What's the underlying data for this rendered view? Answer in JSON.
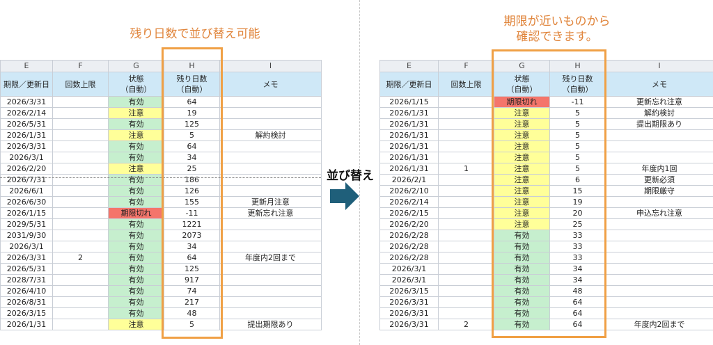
{
  "annotations": {
    "left": "残り日数で並び替え可能",
    "right_line1": "期限が近いものから",
    "right_line2": "確認できます。",
    "arrow": "並び替え"
  },
  "colors": {
    "valid": "#c6efce",
    "caution": "#ffff99",
    "expired": "#f4756b",
    "header": "#cfe8f7",
    "highlight": "#f0a045",
    "arrow": "#1f5f7a"
  },
  "icons": {
    "arrow": "right-arrow-icon"
  },
  "left_sheet": {
    "columns": [
      "E",
      "F",
      "G",
      "H",
      "I"
    ],
    "headers": [
      "期限／更新日",
      "回数上限",
      "状態\n（自動）",
      "残り日数\n（自動）",
      "メモ"
    ],
    "rows": [
      [
        "2026/3/31",
        "",
        "有効",
        "64",
        ""
      ],
      [
        "2026/2/14",
        "",
        "注意",
        "19",
        ""
      ],
      [
        "2026/5/31",
        "",
        "有効",
        "125",
        ""
      ],
      [
        "2026/1/31",
        "",
        "注意",
        "5",
        "解約検討"
      ],
      [
        "2026/3/31",
        "",
        "有効",
        "64",
        ""
      ],
      [
        "2026/3/1",
        "",
        "有効",
        "34",
        ""
      ],
      [
        "2026/2/20",
        "",
        "注意",
        "25",
        ""
      ],
      [
        "2026/7/31",
        "",
        "有効",
        "186",
        ""
      ],
      [
        "2026/6/1",
        "",
        "有効",
        "126",
        ""
      ],
      [
        "2026/6/30",
        "",
        "有効",
        "155",
        "更新月注意"
      ],
      [
        "2026/1/15",
        "",
        "期限切れ",
        "-11",
        "更新忘れ注意"
      ],
      [
        "2029/5/31",
        "",
        "有効",
        "1221",
        ""
      ],
      [
        "2031/9/30",
        "",
        "有効",
        "2073",
        ""
      ],
      [
        "2026/3/1",
        "",
        "有効",
        "34",
        ""
      ],
      [
        "2026/3/31",
        "2",
        "有効",
        "64",
        "年度内2回まで"
      ],
      [
        "2026/5/31",
        "",
        "有効",
        "125",
        ""
      ],
      [
        "2028/7/31",
        "",
        "有効",
        "917",
        ""
      ],
      [
        "2026/4/10",
        "",
        "有効",
        "74",
        ""
      ],
      [
        "2026/8/31",
        "",
        "有効",
        "217",
        ""
      ],
      [
        "2026/3/15",
        "",
        "有効",
        "48",
        ""
      ],
      [
        "2026/1/31",
        "",
        "注意",
        "5",
        "提出期限あり"
      ]
    ]
  },
  "right_sheet": {
    "columns": [
      "E",
      "F",
      "G",
      "H",
      "I"
    ],
    "headers": [
      "期限／更新日",
      "回数上限",
      "状態\n（自動）",
      "残り日数\n（自動）",
      "メモ"
    ],
    "rows": [
      [
        "2026/1/15",
        "",
        "期限切れ",
        "-11",
        "更新忘れ注意"
      ],
      [
        "2026/1/31",
        "",
        "注意",
        "5",
        "解約検討"
      ],
      [
        "2026/1/31",
        "",
        "注意",
        "5",
        "提出期限あり"
      ],
      [
        "2026/1/31",
        "",
        "注意",
        "5",
        ""
      ],
      [
        "2026/1/31",
        "",
        "注意",
        "5",
        ""
      ],
      [
        "2026/1/31",
        "",
        "注意",
        "5",
        ""
      ],
      [
        "2026/1/31",
        "1",
        "注意",
        "5",
        "年度内1回"
      ],
      [
        "2026/2/1",
        "",
        "注意",
        "6",
        "更新必須"
      ],
      [
        "2026/2/10",
        "",
        "注意",
        "15",
        "期限厳守"
      ],
      [
        "2026/2/14",
        "",
        "注意",
        "19",
        ""
      ],
      [
        "2026/2/15",
        "",
        "注意",
        "20",
        "申込忘れ注意"
      ],
      [
        "2026/2/20",
        "",
        "注意",
        "25",
        ""
      ],
      [
        "2026/2/28",
        "",
        "有効",
        "33",
        ""
      ],
      [
        "2026/2/28",
        "",
        "有効",
        "33",
        ""
      ],
      [
        "2026/2/28",
        "",
        "有効",
        "33",
        ""
      ],
      [
        "2026/3/1",
        "",
        "有効",
        "34",
        ""
      ],
      [
        "2026/3/1",
        "",
        "有効",
        "34",
        ""
      ],
      [
        "2026/3/15",
        "",
        "有効",
        "48",
        ""
      ],
      [
        "2026/3/31",
        "",
        "有効",
        "64",
        ""
      ],
      [
        "2026/3/31",
        "",
        "有効",
        "64",
        ""
      ],
      [
        "2026/3/31",
        "2",
        "有効",
        "64",
        "年度内2回まで"
      ]
    ]
  }
}
